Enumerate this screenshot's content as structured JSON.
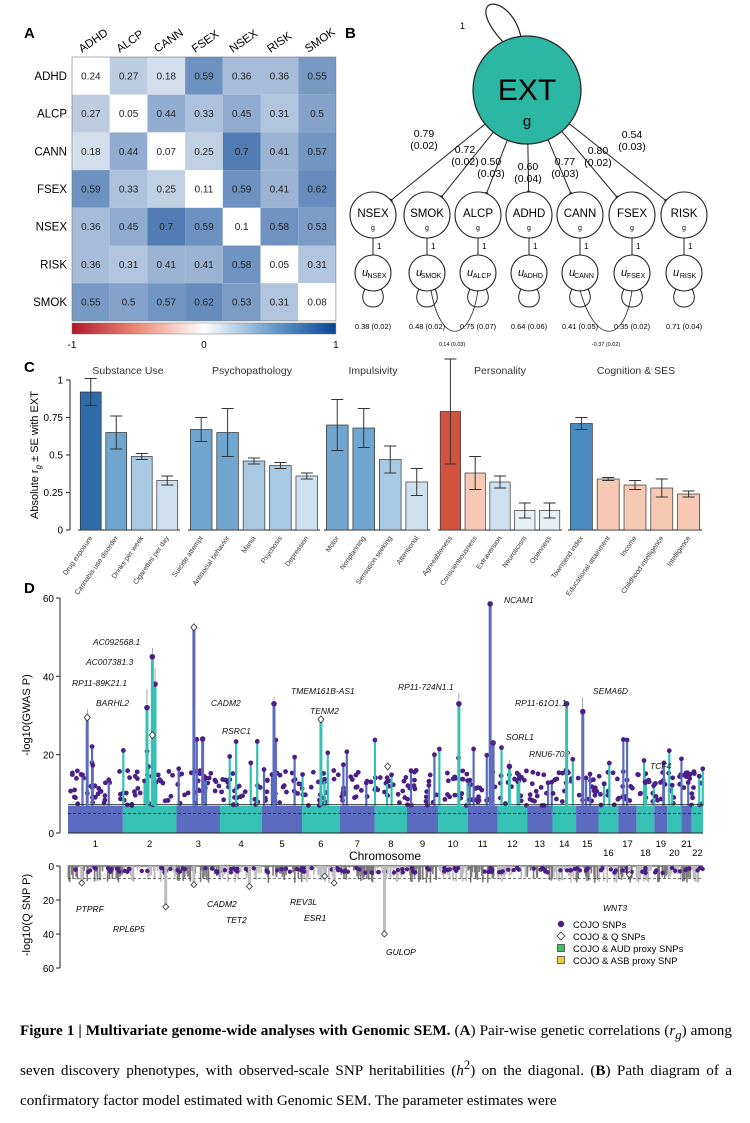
{
  "panel_a": {
    "label": "A",
    "traits": [
      "ADHD",
      "ALCP",
      "CANN",
      "FSEX",
      "NSEX",
      "RISK",
      "SMOK"
    ],
    "colorbar_ticks": [
      "-1",
      "0",
      "1"
    ]
  },
  "panel_b": {
    "label": "B",
    "factor": "EXT",
    "factor_sub": "g",
    "self_loop": "1",
    "indicator_sub": "g",
    "residual_link": "1",
    "indicators": [
      {
        "name": "NSEX",
        "loading": "0.79",
        "se": "(0.02)",
        "u": "u",
        "u_sub": "NSEX",
        "resid": "0.38 (0.02)"
      },
      {
        "name": "SMOK",
        "loading": "0.72",
        "se": "(0.02)",
        "u": "u",
        "u_sub": "SMOK",
        "resid": "0.48 (0.02)"
      },
      {
        "name": "ALCP",
        "loading": "0.50",
        "se": "(0.03)",
        "u": "u",
        "u_sub": "ALCP",
        "resid": "0.75 (0.07)"
      },
      {
        "name": "ADHD",
        "loading": "0.60",
        "se": "(0.04)",
        "u": "u",
        "u_sub": "ADHD",
        "resid": "0.64 (0.06)"
      },
      {
        "name": "CANN",
        "loading": "0.77",
        "se": "(0.03)",
        "u": "u",
        "u_sub": "CANN",
        "resid": "0.41 (0.05)"
      },
      {
        "name": "FSEX",
        "loading": "0.80",
        "se": "(0.02)",
        "u": "u",
        "u_sub": "FSEX",
        "resid": "0.35 (0.02)"
      },
      {
        "name": "RISK",
        "loading": "0.54",
        "se": "(0.03)",
        "u": "u",
        "u_sub": "RISK",
        "resid": "0.71 (0.04)"
      }
    ],
    "cov1": "0.14 (0.03)",
    "cov2": "-0.37 (0.02)"
  },
  "panel_c": {
    "label": "C",
    "ylabel": "Absolute r",
    "ylabel_sub": "g",
    "ylabel_rest": " ± SE with EXT",
    "yticks": [
      "0",
      "0.25",
      "0.5",
      "0.75",
      "1"
    ],
    "groups": [
      "Substance Use",
      "Psychopathology",
      "Impulsivity",
      "Personality",
      "Cognition & SES"
    ]
  },
  "panel_d": {
    "label": "D",
    "xlabel": "Chromosome",
    "ylabel_top": "-log10(GWAS P)",
    "ylabel_bottom": "-log10(Q SNP P)",
    "yticks_top": [
      "0",
      "20",
      "40",
      "60"
    ],
    "yticks_bottom": [
      "0",
      "20",
      "40",
      "60"
    ],
    "chromosomes": [
      "1",
      "2",
      "3",
      "4",
      "5",
      "6",
      "7",
      "8",
      "9",
      "10",
      "11",
      "12",
      "13",
      "14",
      "15",
      "16",
      "17",
      "18",
      "19",
      "20",
      "21",
      "22"
    ],
    "legend": [
      {
        "label": "COJO SNPs",
        "color": "#4b1f86"
      },
      {
        "label": "COJO & Q SNPs",
        "color": "#ffffff"
      },
      {
        "label": "COJO & AUD proxy SNPs",
        "color": "#3cc06a"
      },
      {
        "label": "COJO & ASB proxy SNP",
        "color": "#e3d33a"
      }
    ],
    "gene_labels_top": [
      "AC092568.1",
      "AC007381.3",
      "RP11-89K21.1",
      "BARHL2",
      "CADM2",
      "RSRC1",
      "TMEM161B-AS1",
      "TENM2",
      "RP11-724N1.1",
      "NCAM1",
      "SORL1",
      "RNU6-70P",
      "RP11-61O1.1",
      "SEMA6D",
      "TCF4"
    ],
    "gene_labels_bottom": [
      "PTPRF",
      "RPL6P5",
      "CADM2",
      "TET2",
      "REV3L",
      "ESR1",
      "GULOP",
      "WNT3"
    ]
  },
  "chart_data": [
    {
      "type": "heatmap",
      "rows": [
        "ADHD",
        "ALCP",
        "CANN",
        "FSEX",
        "NSEX",
        "RISK",
        "SMOK"
      ],
      "cols": [
        "ADHD",
        "ALCP",
        "CANN",
        "FSEX",
        "NSEX",
        "RISK",
        "SMOK"
      ],
      "values": [
        [
          0.24,
          0.27,
          0.18,
          0.59,
          0.36,
          0.36,
          0.55
        ],
        [
          0.27,
          0.05,
          0.44,
          0.33,
          0.45,
          0.31,
          0.5
        ],
        [
          0.18,
          0.44,
          0.07,
          0.25,
          0.7,
          0.41,
          0.57
        ],
        [
          0.59,
          0.33,
          0.25,
          0.11,
          0.59,
          0.41,
          0.62
        ],
        [
          0.36,
          0.45,
          0.7,
          0.59,
          0.1,
          0.58,
          0.53
        ],
        [
          0.36,
          0.31,
          0.41,
          0.41,
          0.58,
          0.05,
          0.31
        ],
        [
          0.55,
          0.5,
          0.57,
          0.62,
          0.53,
          0.31,
          0.08
        ]
      ],
      "value_labels": [
        [
          "0.24",
          "0.27",
          "0.18",
          "0.59",
          "0.36",
          "0.36",
          "0.55"
        ],
        [
          "0.27",
          "0.05",
          "0.44",
          "0.33",
          "0.45",
          "0.31",
          "0.5"
        ],
        [
          "0.18",
          "0.44",
          "0.07",
          "0.25",
          "0.7",
          "0.41",
          "0.57"
        ],
        [
          "0.59",
          "0.33",
          "0.25",
          "0.11",
          "0.59",
          "0.41",
          "0.62"
        ],
        [
          "0.36",
          "0.45",
          "0.7",
          "0.59",
          "0.1",
          "0.58",
          "0.53"
        ],
        [
          "0.36",
          "0.31",
          "0.41",
          "0.41",
          "0.58",
          "0.05",
          "0.31"
        ],
        [
          "0.55",
          "0.5",
          "0.57",
          "0.62",
          "0.53",
          "0.31",
          "0.08"
        ]
      ],
      "diagonal_white": true,
      "scale": [
        -1,
        1
      ]
    },
    {
      "type": "bar",
      "ylim": [
        0,
        1
      ],
      "groups": [
        {
          "name": "Substance Use",
          "bars": [
            {
              "label": "Drug exposure",
              "value": 0.92,
              "se": 0.09,
              "color": "#2f6ba8"
            },
            {
              "label": "Cannabis use disorder",
              "value": 0.65,
              "se": 0.11,
              "color": "#6fa5cf"
            },
            {
              "label": "Drinks per week",
              "value": 0.49,
              "se": 0.02,
              "color": "#a9c9e3"
            },
            {
              "label": "Cigarettes per day",
              "value": 0.33,
              "se": 0.03,
              "color": "#cfe1f0"
            }
          ]
        },
        {
          "name": "Psychopathology",
          "bars": [
            {
              "label": "Suicide attempt",
              "value": 0.67,
              "se": 0.08,
              "color": "#6fa5cf"
            },
            {
              "label": "Antisocial behavior",
              "value": 0.65,
              "se": 0.16,
              "color": "#6fa5cf"
            },
            {
              "label": "Mania",
              "value": 0.46,
              "se": 0.02,
              "color": "#a9c9e3"
            },
            {
              "label": "Psychosis",
              "value": 0.43,
              "se": 0.02,
              "color": "#a9c9e3"
            },
            {
              "label": "Depression",
              "value": 0.36,
              "se": 0.02,
              "color": "#cfe1f0"
            }
          ]
        },
        {
          "name": "Impulsivity",
          "bars": [
            {
              "label": "Motor",
              "value": 0.7,
              "se": 0.17,
              "color": "#6fa5cf"
            },
            {
              "label": "Nonplanning",
              "value": 0.68,
              "se": 0.13,
              "color": "#6fa5cf"
            },
            {
              "label": "Sensation seeking",
              "value": 0.47,
              "se": 0.09,
              "color": "#a9c9e3"
            },
            {
              "label": "Attentional",
              "value": 0.32,
              "se": 0.09,
              "color": "#cfe1f0"
            }
          ]
        },
        {
          "name": "Personality",
          "bars": [
            {
              "label": "Agreeableness",
              "value": 0.79,
              "se": 0.35,
              "color": "#d4533f"
            },
            {
              "label": "Conscientiousness",
              "value": 0.38,
              "se": 0.11,
              "color": "#f7c9b4"
            },
            {
              "label": "Extraversion",
              "value": 0.32,
              "se": 0.04,
              "color": "#cfe1f0"
            },
            {
              "label": "Neuroticism",
              "value": 0.13,
              "se": 0.05,
              "color": "#e8f0f7"
            },
            {
              "label": "Openness",
              "value": 0.13,
              "se": 0.05,
              "color": "#e8f0f7"
            }
          ]
        },
        {
          "name": "Cognition & SES",
          "bars": [
            {
              "label": "Townsend index",
              "value": 0.71,
              "se": 0.04,
              "color": "#4a8cc2"
            },
            {
              "label": "Educational attainment",
              "value": 0.34,
              "se": 0.01,
              "color": "#f7c9b4"
            },
            {
              "label": "Income",
              "value": 0.3,
              "se": 0.03,
              "color": "#f7c9b4"
            },
            {
              "label": "Childhood intelligence",
              "value": 0.28,
              "se": 0.06,
              "color": "#f7c9b4"
            },
            {
              "label": "Intelligence",
              "value": 0.24,
              "se": 0.02,
              "color": "#f7c9b4"
            }
          ]
        }
      ]
    },
    {
      "type": "scatter",
      "subtype": "manhattan",
      "x": "chromosome",
      "ylim_top": [
        0,
        60
      ],
      "ylim_bottom": [
        0,
        60
      ],
      "peaks_top": [
        {
          "chr": "1",
          "y": 29.5,
          "label": "BARHL2"
        },
        {
          "chr": "2",
          "y": 32,
          "label": "RP11-89K21.1"
        },
        {
          "chr": "2",
          "y": 38,
          "label": "AC007381.3"
        },
        {
          "chr": "2",
          "y": 45,
          "label": "AC092568.1"
        },
        {
          "chr": "3",
          "y": 52.5,
          "label": "CADM2"
        },
        {
          "chr": "3",
          "y": 24,
          "label": "RSRC1"
        },
        {
          "chr": "5",
          "y": 33,
          "label": "TMEM161B-AS1"
        },
        {
          "chr": "6",
          "y": 29,
          "label": "TENM2"
        },
        {
          "chr": "10",
          "y": 33,
          "label": "RP11-724N1.1"
        },
        {
          "chr": "11",
          "y": 58.5,
          "label": "NCAM1"
        },
        {
          "chr": "11",
          "y": 23,
          "label": "SORL1"
        },
        {
          "chr": "12",
          "y": 17,
          "label": "RNU6-70P"
        },
        {
          "chr": "14",
          "y": 33,
          "label": "RP11-61O1.1"
        },
        {
          "chr": "15",
          "y": 31,
          "label": "SEMA6D"
        },
        {
          "chr": "18",
          "y": 13,
          "label": "TCF4"
        }
      ],
      "peaks_bottom": [
        {
          "chr": "1",
          "y": 10,
          "label": "PTPRF"
        },
        {
          "chr": "2",
          "y": 24,
          "label": "RPL6P5"
        },
        {
          "chr": "3",
          "y": 11,
          "label": "CADM2"
        },
        {
          "chr": "4",
          "y": 12,
          "label": "TET2"
        },
        {
          "chr": "6",
          "y": 6,
          "label": "REV3L"
        },
        {
          "chr": "6",
          "y": 10,
          "label": "ESR1"
        },
        {
          "chr": "8",
          "y": 40,
          "label": "GULOP"
        },
        {
          "chr": "17",
          "y": 5,
          "label": "WNT3"
        }
      ]
    }
  ],
  "caption": {
    "fig": "Figure 1 | Multivariate genome-wide analyses with Genomic SEM.",
    "a_label": "A",
    "a_text": "Pair-wise genetic correlations (",
    "rg": "r",
    "rg_sub": "g",
    "a_text2": ") among seven discovery phenotypes, with observed-scale SNP heritabilities (",
    "h2": "h",
    "h2_sup": "2",
    "a_text3": ") on the diagonal.",
    "b_label": "B",
    "b_text": "Path diagram of a confirmatory factor model estimated with Genomic SEM. The parameter estimates were"
  }
}
